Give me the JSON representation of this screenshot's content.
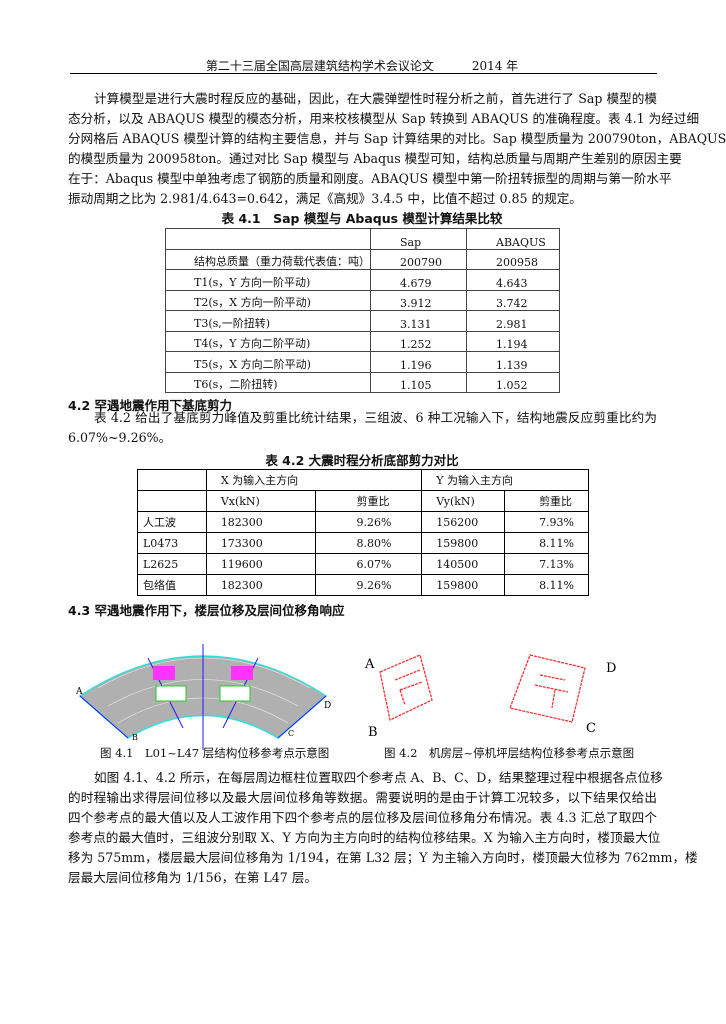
{
  "header": {
    "title": "第二十三届全国高层建筑结构学术会议论文",
    "year": "2014 年"
  },
  "para1": [
    "计算模型是进行大震时程反应的基础，因此，在大震弹塑性时程分析之前，首先进行了 Sap 模型的模",
    "态分析，以及 ABAQUS 模型的模态分析，用来校核模型从 Sap 转换到 ABAQUS 的准确程度。表 4.1 为经过细",
    "分网格后 ABAQUS 模型计算的结构主要信息，并与 Sap 计算结果的对比。Sap 模型质量为 200790ton，ABAQUS",
    "的模型质量为 200958ton。通过对比 Sap 模型与 Abaqus 模型可知，结构总质量与周期产生差别的原因主要",
    "在于：Abaqus 模型中单独考虑了钢筋的质量和刚度。ABAQUS 模型中第一阶扭转振型的周期与第一阶水平",
    "振动周期之比为 2.981/4.643=0.642，满足《高规》3.4.5 中，比值不超过 0.85 的规定。"
  ],
  "table1": {
    "caption": "表 4.1　Sap 模型与 Abaqus 模型计算结果比较",
    "headers": [
      "",
      "Sap",
      "ABAQUS"
    ],
    "rows": [
      [
        "结构总质量（重力荷载代表值：吨）",
        "200790",
        "200958"
      ],
      [
        "T1(s，Y 方向一阶平动)",
        "4.679",
        "4.643"
      ],
      [
        "T2(s，X 方向一阶平动)",
        "3.912",
        "3.742"
      ],
      [
        "T3(s,一阶扭转)",
        "3.131",
        "2.981"
      ],
      [
        "T4(s，Y 方向二阶平动)",
        "1.252",
        "1.194"
      ],
      [
        "T5(s，X 方向二阶平动)",
        "1.196",
        "1.139"
      ],
      [
        "T6(s，二阶扭转)",
        "1.105",
        "1.052"
      ]
    ]
  },
  "section42": {
    "title": "4.2 罕遇地震作用下基底剪力",
    "lines": [
      "表 4.2 给出了基底剪力峰值及剪重比统计结果，三组波、6 种工况输入下，结构地震反应剪重比约为",
      "6.07%~9.26%。"
    ]
  },
  "table2": {
    "caption": "表 4.2 大震时程分析底部剪力对比",
    "group_headers": [
      "X 为输入主方向",
      "Y 为输入主方向"
    ],
    "sub_headers": [
      "Vx(kN)",
      "剪重比",
      "Vy(kN)",
      "剪重比"
    ],
    "rows": [
      [
        "人工波",
        "182300",
        "9.26%",
        "156200",
        "7.93%"
      ],
      [
        "L0473",
        "173300",
        "8.80%",
        "159800",
        "8.11%"
      ],
      [
        "L2625",
        "119600",
        "6.07%",
        "140500",
        "7.13%"
      ],
      [
        "包络值",
        "182300",
        "9.26%",
        "159800",
        "8.11%"
      ]
    ]
  },
  "section43": {
    "title": "4.3 罕遇地震作用下，楼层位移及层间位移角响应"
  },
  "figures": {
    "fig1": {
      "caption": "图 4.1　L01~L47 层结构位移参考点示意图",
      "labels": [
        "A",
        "B",
        "C",
        "D"
      ]
    },
    "fig2": {
      "caption": "图 4.2　机房层~停机坪层结构位移参考点示意图",
      "labels": [
        "A",
        "B",
        "C",
        "D"
      ]
    }
  },
  "para3": [
    "如图 4.1、4.2 所示，在每层周边框柱位置取四个参考点 A、B、C、D，结果整理过程中根据各点位移",
    "的时程输出求得层间位移以及最大层间位移角等数据。需要说明的是由于计算工况较多，以下结果仅给出",
    "四个参考点的最大值以及人工波作用下四个参考点的层位移及层间位移角分布情况。表 4.3 汇总了取四个",
    "参考点的最大值时，三组波分别取 X、Y 方向为主方向时的结构位移结果。X 为输入主方向时，楼顶最大位",
    "移为 575mm，楼层最大层间位移角为 1/194，在第 L32 层；Y 为主输入方向时，楼顶最大位移为 762mm，楼",
    "层最大层间位移角为 1/156，在第 L47 层。"
  ],
  "colors": {
    "slab": "#b0b0b0",
    "beam": "#1a1aff",
    "core": "#ff33ff",
    "wall": "#22cc22",
    "outline": "#ff2020",
    "edge": "#33dddd"
  }
}
